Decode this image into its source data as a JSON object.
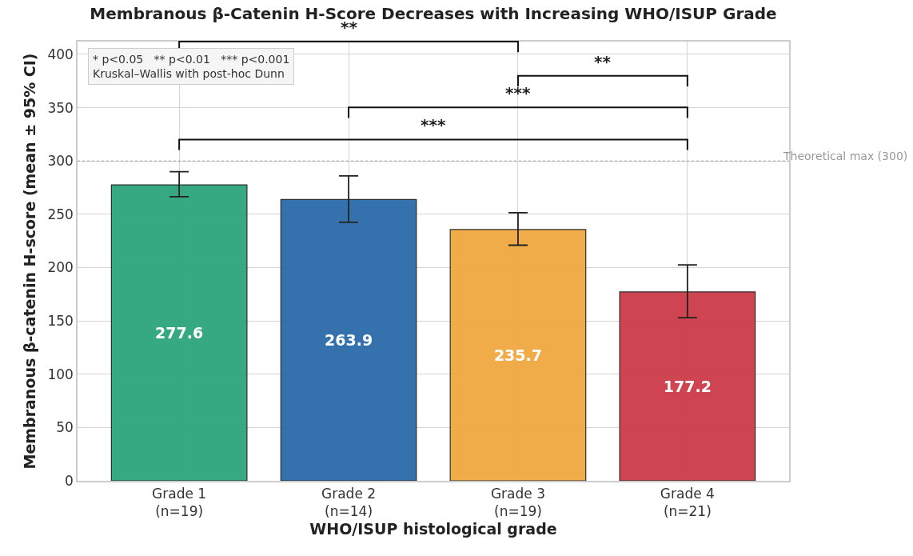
{
  "chart_data": {
    "type": "bar",
    "title": "Membranous β-Catenin H-Score Decreases with Increasing WHO/ISUP Grade",
    "xlabel": "WHO/ISUP histological grade",
    "ylabel": "Membranous β-catenin H-score (mean ± 95% CI)",
    "categories": [
      "Grade 1\n(n=19)",
      "Grade 2\n(n=14)",
      "Grade 3\n(n=19)",
      "Grade 4\n(n=21)"
    ],
    "values": [
      277.6,
      263.9,
      235.7,
      177.2
    ],
    "colors": [
      "#2ca47c",
      "#2b6aa8",
      "#f0a840",
      "#cc3b47"
    ],
    "errors": [
      [
        266.5,
        290
      ],
      [
        242.5,
        286
      ],
      [
        221,
        251.5
      ],
      [
        153,
        202.5
      ]
    ],
    "data_labels": true,
    "ylim": [
      0,
      412
    ],
    "yticks": [
      0,
      50,
      100,
      150,
      200,
      250,
      300,
      350,
      400
    ],
    "grid": true,
    "ref_lines": [
      {
        "axis": "y",
        "value": 300,
        "label": "Theoretical max (300)",
        "color": "#999999",
        "line_style": "dotted"
      }
    ],
    "annotations": [
      "***",
      "***",
      "**",
      "**",
      "* p<0.05   ** p<0.01   *** p<0.001\nKruskal–Wallis with post-hoc Dunn"
    ]
  }
}
